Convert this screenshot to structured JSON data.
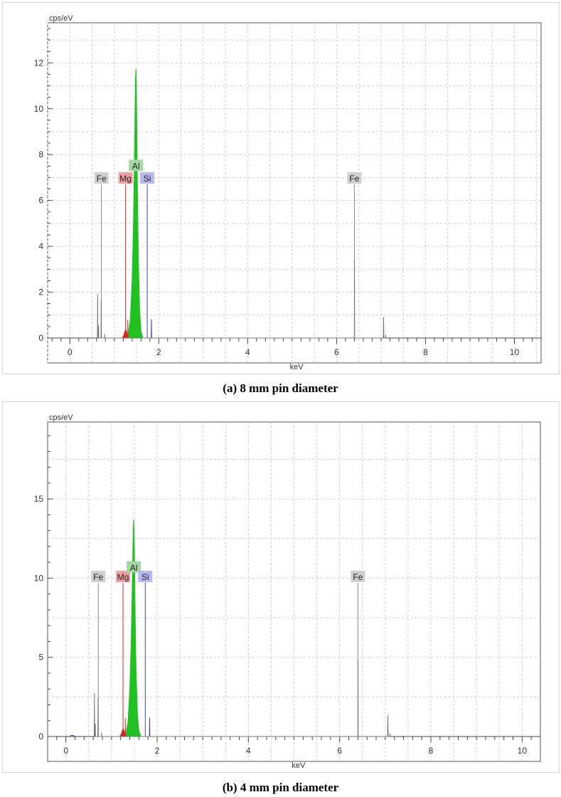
{
  "chart_data": [
    {
      "type": "line",
      "caption": "(a) 8 mm pin diameter",
      "ylabel": "cps/eV",
      "xlabel": "keV",
      "xlim": [
        -0.5,
        10.6
      ],
      "ylim": [
        0,
        13.5
      ],
      "xticks": [
        0,
        2,
        4,
        6,
        8,
        10
      ],
      "yticks": [
        0,
        2,
        4,
        6,
        8,
        10,
        12
      ],
      "grid": true,
      "series": [
        {
          "name": "Al",
          "color": "#22c022",
          "fill": true,
          "x": [
            1.3,
            1.36,
            1.4,
            1.43,
            1.45,
            1.466,
            1.475,
            1.487,
            1.496,
            1.506,
            1.52,
            1.54,
            1.57,
            1.6,
            1.64
          ],
          "y": [
            0,
            0.8,
            2.5,
            5.0,
            7.5,
            9.8,
            11.2,
            11.75,
            11.0,
            9.2,
            6.5,
            3.5,
            1.2,
            0.3,
            0
          ]
        },
        {
          "name": "Mg",
          "color": "#dd2222",
          "fill": true,
          "x": [
            1.18,
            1.215,
            1.236,
            1.253,
            1.27,
            1.3,
            1.32
          ],
          "y": [
            0,
            0.12,
            0.28,
            0.38,
            0.3,
            0.1,
            0
          ]
        },
        {
          "name": "Mg",
          "color": "#dd2222",
          "fill": false,
          "x": [
            1.302,
            1.304,
            1.306
          ],
          "y": [
            0,
            0.8,
            0
          ]
        },
        {
          "name": "Si",
          "color": "#3344cc",
          "fill": false,
          "x": [
            1.83,
            1.835,
            1.84
          ],
          "y": [
            0,
            0.82,
            0
          ]
        },
        {
          "name": "Fe",
          "color": "#777777",
          "fill": false,
          "x": [
            0.62,
            0.625,
            0.63,
            0.64,
            0.645,
            0.65,
            0.7,
            0.705,
            0.71,
            0.78,
            0.782,
            0.785,
            6.4,
            6.403,
            6.406,
            7.05,
            7.057,
            7.064,
            7.1,
            7.105,
            7.11
          ],
          "y": [
            0,
            1.92,
            0,
            0,
            0.55,
            0,
            0,
            1.65,
            0,
            0,
            0.18,
            0,
            0,
            3.4,
            0,
            0,
            0.92,
            0,
            0,
            0.14,
            0
          ]
        }
      ],
      "annotations": [
        {
          "label": "Fe",
          "x": 0.71,
          "height": 6.7,
          "color": "#888888",
          "box": "#cfcfcf"
        },
        {
          "label": "Mg",
          "x": 1.253,
          "height": 6.7,
          "color": "#dd2222",
          "box": "#f0a0a0"
        },
        {
          "label": "Al",
          "x": 1.487,
          "height": 7.25,
          "color": "#22a022",
          "box": "#a6d6a6"
        },
        {
          "label": "Si",
          "x": 1.74,
          "height": 6.7,
          "color": "#3344cc",
          "box": "#b8b8f0"
        },
        {
          "label": "Fe",
          "x": 6.4,
          "height": 6.7,
          "color": "#888888",
          "box": "#cfcfcf"
        }
      ]
    },
    {
      "type": "line",
      "caption": "(b) 4 mm pin diameter",
      "ylabel": "cps/eV",
      "xlabel": "keV",
      "xlim": [
        -0.4,
        10.4
      ],
      "ylim": [
        0,
        19.5
      ],
      "xticks": [
        0,
        2,
        4,
        6,
        8,
        10
      ],
      "yticks": [
        0,
        5,
        10,
        15
      ],
      "grid": true,
      "series": [
        {
          "name": "Al",
          "color": "#22c022",
          "fill": true,
          "x": [
            1.3,
            1.36,
            1.4,
            1.43,
            1.45,
            1.466,
            1.475,
            1.487,
            1.496,
            1.506,
            1.52,
            1.54,
            1.57,
            1.6,
            1.64
          ],
          "y": [
            0,
            0.9,
            2.9,
            5.8,
            8.8,
            11.4,
            13.0,
            13.7,
            12.8,
            10.7,
            7.5,
            4.0,
            1.4,
            0.35,
            0
          ]
        },
        {
          "name": "Mg",
          "color": "#dd2222",
          "fill": true,
          "x": [
            1.18,
            1.215,
            1.236,
            1.253,
            1.27,
            1.3,
            1.32
          ],
          "y": [
            0,
            0.15,
            0.35,
            0.5,
            0.4,
            0.12,
            0
          ]
        },
        {
          "name": "Mg",
          "color": "#dd2222",
          "fill": false,
          "x": [
            1.302,
            1.304,
            1.306
          ],
          "y": [
            0,
            1.15,
            0
          ]
        },
        {
          "name": "Si",
          "color": "#3344cc",
          "fill": false,
          "x": [
            1.83,
            1.835,
            1.84
          ],
          "y": [
            0,
            1.2,
            0
          ]
        },
        {
          "name": "Fe",
          "color": "#777777",
          "fill": false,
          "x": [
            0.62,
            0.625,
            0.63,
            0.64,
            0.645,
            0.65,
            0.7,
            0.705,
            0.71,
            0.78,
            0.782,
            0.785,
            6.4,
            6.403,
            6.406,
            7.05,
            7.057,
            7.064,
            7.1,
            7.105,
            7.11
          ],
          "y": [
            0,
            2.75,
            0,
            0,
            0.8,
            0,
            0,
            2.45,
            0,
            0,
            0.25,
            0,
            0,
            4.9,
            0,
            0,
            1.35,
            0,
            0,
            0.2,
            0
          ]
        },
        {
          "name": "",
          "color": "#3344cc",
          "fill": false,
          "x": [
            0.08,
            0.12,
            0.16,
            0.2
          ],
          "y": [
            0,
            0.08,
            0.06,
            0
          ]
        }
      ],
      "annotations": [
        {
          "label": "Fe",
          "x": 0.71,
          "height": 9.7,
          "color": "#888888",
          "box": "#cfcfcf"
        },
        {
          "label": "Mg",
          "x": 1.253,
          "height": 9.7,
          "color": "#dd2222",
          "box": "#f0a0a0"
        },
        {
          "label": "Al",
          "x": 1.487,
          "height": 10.3,
          "color": "#22a022",
          "box": "#a6d6a6"
        },
        {
          "label": "Si",
          "x": 1.74,
          "height": 9.7,
          "color": "#3344cc",
          "box": "#b8b8f0"
        },
        {
          "label": "Fe",
          "x": 6.4,
          "height": 9.7,
          "color": "#888888",
          "box": "#cfcfcf"
        }
      ]
    }
  ]
}
